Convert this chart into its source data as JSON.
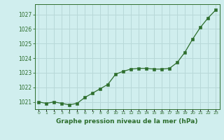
{
  "x": [
    0,
    1,
    2,
    3,
    4,
    5,
    6,
    7,
    8,
    9,
    10,
    11,
    12,
    13,
    14,
    15,
    16,
    17,
    18,
    19,
    20,
    21,
    22,
    23
  ],
  "y": [
    1021.0,
    1020.9,
    1021.0,
    1020.9,
    1020.8,
    1020.9,
    1021.3,
    1021.6,
    1021.9,
    1022.2,
    1022.9,
    1023.1,
    1023.25,
    1023.3,
    1023.3,
    1023.25,
    1023.25,
    1023.3,
    1023.7,
    1024.4,
    1025.3,
    1026.1,
    1026.75,
    1027.3
  ],
  "line_color": "#2d6e2d",
  "marker_color": "#2d6e2d",
  "bg_color": "#d0eeee",
  "grid_color": "#b8d8d8",
  "tick_color": "#2d6e2d",
  "label_color": "#2d6e2d",
  "xlabel": "Graphe pression niveau de la mer (hPa)",
  "ylim_min": 1020.5,
  "ylim_max": 1027.7,
  "yticks": [
    1021,
    1022,
    1023,
    1024,
    1025,
    1026,
    1027
  ],
  "xticks": [
    0,
    1,
    2,
    3,
    4,
    5,
    6,
    7,
    8,
    9,
    10,
    11,
    12,
    13,
    14,
    15,
    16,
    17,
    18,
    19,
    20,
    21,
    22,
    23
  ]
}
